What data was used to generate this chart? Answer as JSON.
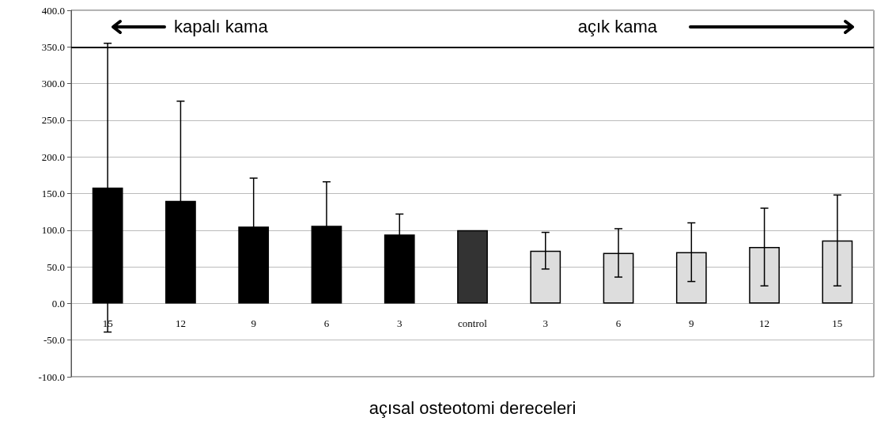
{
  "chart_data": {
    "type": "bar",
    "xlabel": "açısal osteotomi dereceleri",
    "categories": [
      "15",
      "12",
      "9",
      "6",
      "3",
      "control",
      "3",
      "6",
      "9",
      "12",
      "15"
    ],
    "values": [
      158,
      140,
      105,
      106,
      94,
      100,
      72,
      69,
      70,
      77,
      86
    ],
    "errors": [
      197,
      136,
      66,
      60,
      28,
      null,
      25,
      33,
      40,
      53,
      62
    ],
    "colors": [
      "#000000",
      "#000000",
      "#000000",
      "#000000",
      "#000000",
      "#333333",
      "#dddddd",
      "#dddddd",
      "#dddddd",
      "#dddddd",
      "#dddddd"
    ],
    "ylim": [
      -100,
      400
    ],
    "yticks": [
      {
        "value": -100,
        "label": "-100.0"
      },
      {
        "value": -50,
        "label": "-50.0"
      },
      {
        "value": 0,
        "label": "0.0"
      },
      {
        "value": 50,
        "label": "50.0"
      },
      {
        "value": 100,
        "label": "100.0"
      },
      {
        "value": 150,
        "label": "150.0"
      },
      {
        "value": 200,
        "label": "200.0"
      },
      {
        "value": 250,
        "label": "250.0"
      },
      {
        "value": 300,
        "label": "300.0"
      },
      {
        "value": 350,
        "label": "350.0"
      },
      {
        "value": 400,
        "label": "400.0"
      }
    ],
    "grid": "y",
    "ref_lines": [
      {
        "axis": "y",
        "value": 350,
        "color": "#000000"
      }
    ],
    "annotations": [
      "kapalı kama",
      "açık kama"
    ]
  }
}
